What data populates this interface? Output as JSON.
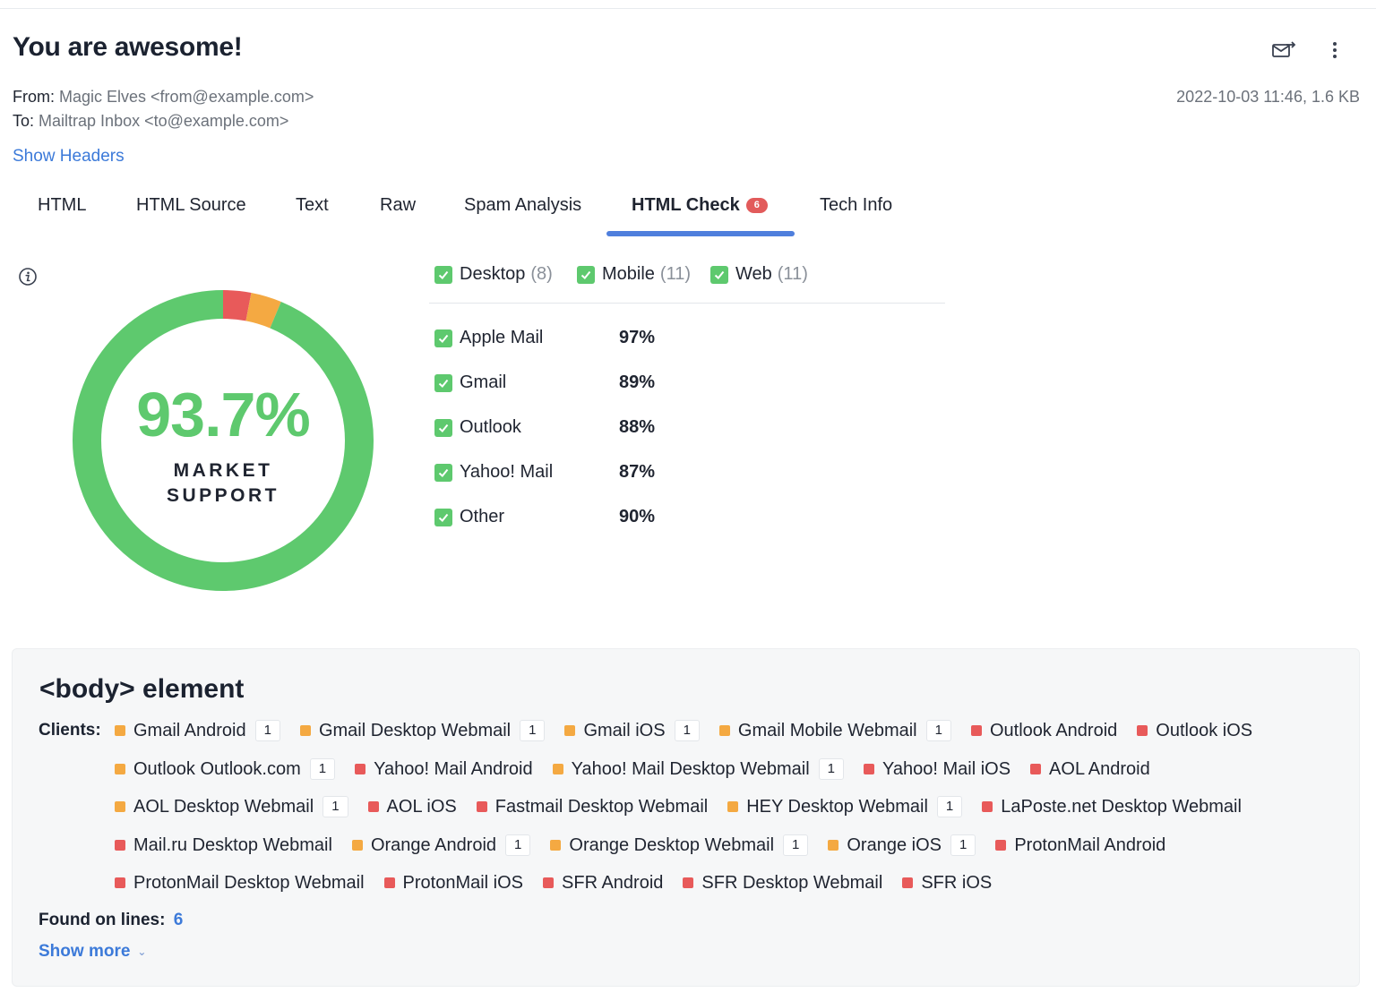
{
  "email": {
    "subject": "You are awesome!",
    "from_label": "From:",
    "from_value": "Magic Elves <from@example.com>",
    "to_label": "To:",
    "to_value": "Mailtrap Inbox <to@example.com>",
    "date_size": "2022-10-03 11:46, 1.6 KB",
    "show_headers": "Show Headers"
  },
  "icons": {
    "forward": "envelope-forward-icon",
    "more": "more-vertical-icon",
    "info": "info-icon",
    "check": "checkbox-checked-icon"
  },
  "tabs": [
    {
      "label": "HTML"
    },
    {
      "label": "HTML Source"
    },
    {
      "label": "Text"
    },
    {
      "label": "Raw"
    },
    {
      "label": "Spam Analysis"
    },
    {
      "label": "HTML Check",
      "badge": "6",
      "active": true
    },
    {
      "label": "Tech Info"
    }
  ],
  "summary": {
    "percent": "93.7%",
    "label_line1": "MARKET",
    "label_line2": "SUPPORT",
    "segments": [
      {
        "status": "supported",
        "fraction": 0.937,
        "color": "#5ec96e"
      },
      {
        "status": "unsupported",
        "fraction": 0.03,
        "color": "#e85a5a"
      },
      {
        "status": "partial",
        "fraction": 0.033,
        "color": "#f4a942"
      }
    ]
  },
  "filters": [
    {
      "label": "Desktop",
      "count": "(8)",
      "checked": true
    },
    {
      "label": "Mobile",
      "count": "(11)",
      "checked": true
    },
    {
      "label": "Web",
      "count": "(11)",
      "checked": true
    }
  ],
  "client_scores": [
    {
      "name": "Apple Mail",
      "percent": "97%",
      "checked": true
    },
    {
      "name": "Gmail",
      "percent": "89%",
      "checked": true
    },
    {
      "name": "Outlook",
      "percent": "88%",
      "checked": true
    },
    {
      "name": "Yahoo! Mail",
      "percent": "87%",
      "checked": true
    },
    {
      "name": "Other",
      "percent": "90%",
      "checked": true
    }
  ],
  "issue": {
    "title": "<body> element",
    "clients_label": "Clients:",
    "clients": [
      {
        "name": "Gmail Android",
        "status": "orange",
        "count": "1"
      },
      {
        "name": "Gmail Desktop Webmail",
        "status": "orange",
        "count": "1"
      },
      {
        "name": "Gmail iOS",
        "status": "orange",
        "count": "1"
      },
      {
        "name": "Gmail Mobile Webmail",
        "status": "orange",
        "count": "1"
      },
      {
        "name": "Outlook Android",
        "status": "red"
      },
      {
        "name": "Outlook iOS",
        "status": "red"
      },
      {
        "name": "Outlook Outlook.com",
        "status": "orange",
        "count": "1"
      },
      {
        "name": "Yahoo! Mail Android",
        "status": "red"
      },
      {
        "name": "Yahoo! Mail Desktop Webmail",
        "status": "orange",
        "count": "1"
      },
      {
        "name": "Yahoo! Mail iOS",
        "status": "red"
      },
      {
        "name": "AOL Android",
        "status": "red"
      },
      {
        "name": "AOL Desktop Webmail",
        "status": "orange",
        "count": "1"
      },
      {
        "name": "AOL iOS",
        "status": "red"
      },
      {
        "name": "Fastmail Desktop Webmail",
        "status": "red"
      },
      {
        "name": "HEY Desktop Webmail",
        "status": "orange",
        "count": "1"
      },
      {
        "name": "LaPoste.net Desktop Webmail",
        "status": "red"
      },
      {
        "name": "Mail.ru Desktop Webmail",
        "status": "red"
      },
      {
        "name": "Orange Android",
        "status": "orange",
        "count": "1"
      },
      {
        "name": "Orange Desktop Webmail",
        "status": "orange",
        "count": "1"
      },
      {
        "name": "Orange iOS",
        "status": "orange",
        "count": "1"
      },
      {
        "name": "ProtonMail Android",
        "status": "red"
      },
      {
        "name": "ProtonMail Desktop Webmail",
        "status": "red"
      },
      {
        "name": "ProtonMail iOS",
        "status": "red"
      },
      {
        "name": "SFR Android",
        "status": "red"
      },
      {
        "name": "SFR Desktop Webmail",
        "status": "red"
      },
      {
        "name": "SFR iOS",
        "status": "red"
      }
    ],
    "found_label": "Found on lines:",
    "found_lines": "6",
    "show_more": "Show more"
  }
}
